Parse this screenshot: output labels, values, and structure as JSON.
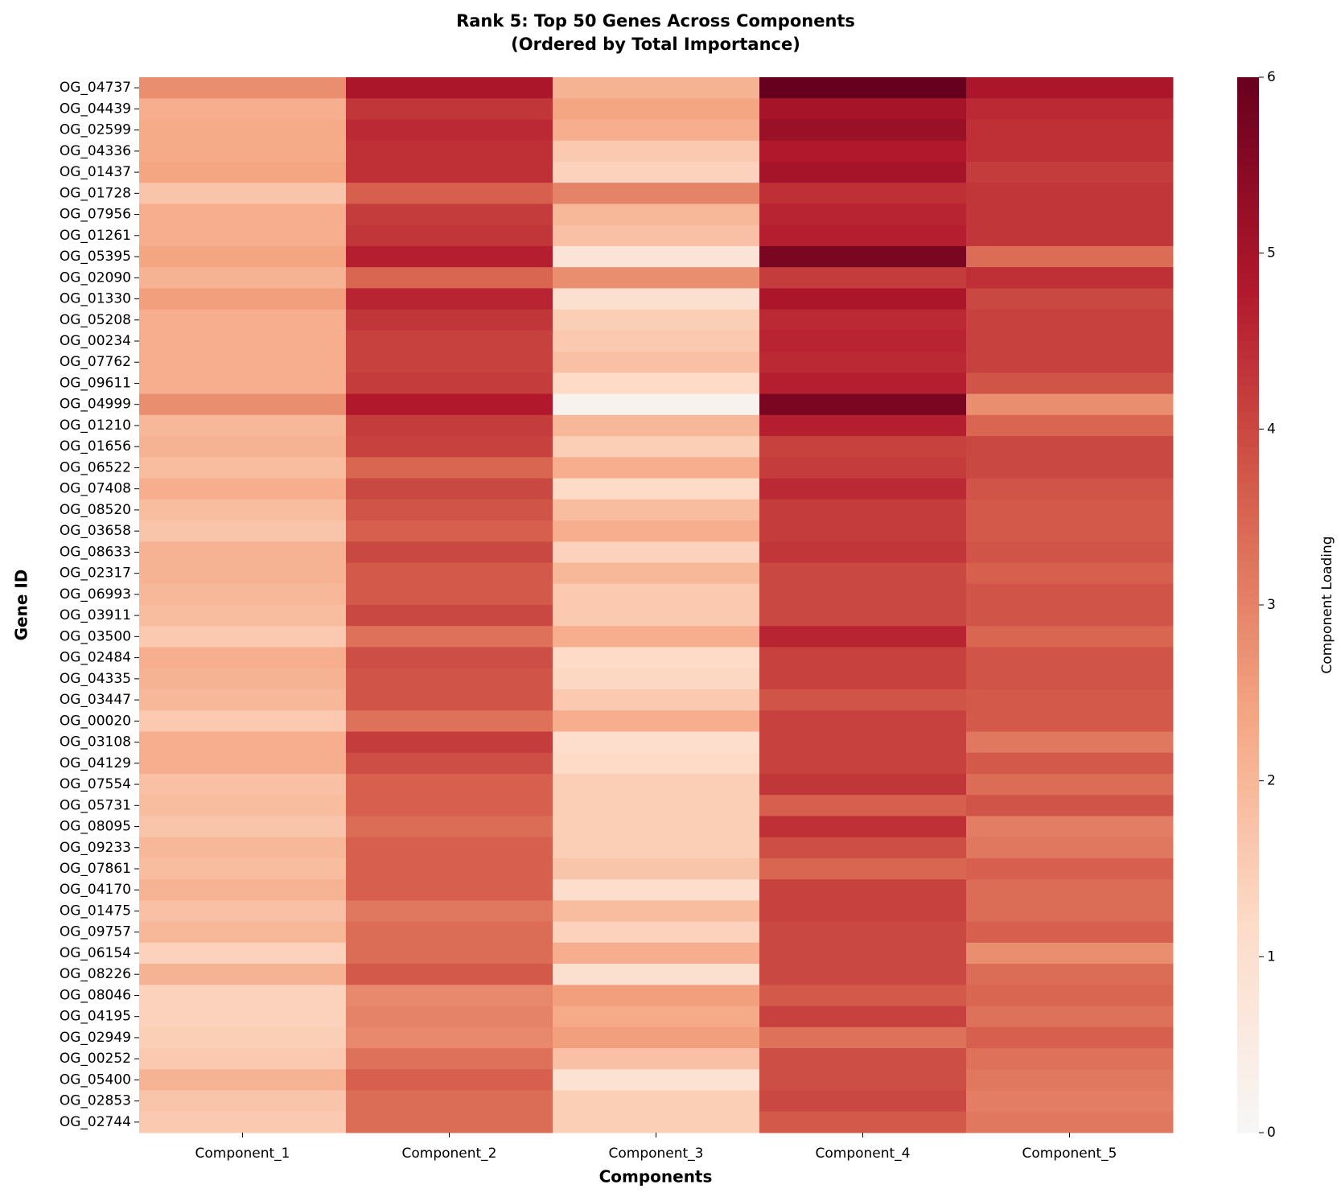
{
  "chart_data": {
    "type": "heatmap",
    "title": "Rank 5: Top 50 Genes Across Components",
    "subtitle": "(Ordered by Total Importance)",
    "x_label": "Components",
    "y_label": "Gene ID",
    "colorbar_label": "Component Loading",
    "x_categories": [
      "Component_1",
      "Component_2",
      "Component_3",
      "Component_4",
      "Component_5"
    ],
    "y_categories": [
      "OG_04737",
      "OG_04439",
      "OG_02599",
      "OG_04336",
      "OG_01437",
      "OG_01728",
      "OG_07956",
      "OG_01261",
      "OG_05395",
      "OG_02090",
      "OG_01330",
      "OG_05208",
      "OG_00234",
      "OG_07762",
      "OG_09611",
      "OG_04999",
      "OG_01210",
      "OG_01656",
      "OG_06522",
      "OG_07408",
      "OG_08520",
      "OG_03658",
      "OG_08633",
      "OG_02317",
      "OG_06993",
      "OG_03911",
      "OG_03500",
      "OG_02484",
      "OG_04335",
      "OG_03447",
      "OG_00020",
      "OG_03108",
      "OG_04129",
      "OG_07554",
      "OG_05731",
      "OG_08095",
      "OG_09233",
      "OG_07861",
      "OG_04170",
      "OG_01475",
      "OG_09757",
      "OG_06154",
      "OG_08226",
      "OG_08046",
      "OG_04195",
      "OG_02949",
      "OG_00252",
      "OG_05400",
      "OG_02853",
      "OG_02744"
    ],
    "values": [
      [
        2.8,
        4.9,
        2.1,
        6.0,
        4.9
      ],
      [
        2.2,
        4.3,
        2.4,
        5.0,
        4.5
      ],
      [
        2.3,
        4.5,
        2.2,
        5.2,
        4.4
      ],
      [
        2.3,
        4.4,
        1.6,
        4.8,
        4.4
      ],
      [
        2.4,
        4.4,
        1.4,
        5.0,
        4.2
      ],
      [
        1.7,
        3.6,
        3.0,
        4.4,
        4.3
      ],
      [
        2.2,
        4.2,
        2.0,
        4.6,
        4.3
      ],
      [
        2.2,
        4.3,
        1.8,
        4.7,
        4.3
      ],
      [
        2.4,
        4.7,
        0.8,
        5.7,
        3.4
      ],
      [
        2.1,
        3.5,
        2.8,
        4.2,
        4.4
      ],
      [
        2.5,
        4.6,
        1.0,
        4.9,
        4.0
      ],
      [
        2.2,
        4.3,
        1.5,
        4.5,
        4.1
      ],
      [
        2.2,
        4.1,
        1.6,
        4.6,
        4.1
      ],
      [
        2.2,
        4.1,
        1.8,
        4.5,
        4.1
      ],
      [
        2.2,
        4.2,
        1.2,
        4.7,
        3.8
      ],
      [
        2.8,
        4.8,
        0.2,
        5.7,
        2.8
      ],
      [
        2.0,
        4.2,
        2.0,
        4.7,
        3.5
      ],
      [
        2.1,
        4.1,
        1.5,
        4.1,
        4.0
      ],
      [
        1.9,
        3.5,
        2.2,
        4.2,
        4.0
      ],
      [
        2.2,
        4.0,
        1.2,
        4.5,
        3.8
      ],
      [
        1.9,
        3.8,
        1.9,
        4.2,
        3.7
      ],
      [
        1.7,
        3.6,
        2.2,
        4.2,
        3.7
      ],
      [
        2.1,
        4.0,
        1.4,
        4.3,
        3.8
      ],
      [
        2.1,
        3.7,
        2.0,
        4.0,
        3.6
      ],
      [
        2.0,
        3.7,
        1.6,
        4.0,
        3.8
      ],
      [
        1.9,
        4.0,
        1.6,
        4.0,
        3.8
      ],
      [
        1.6,
        3.3,
        2.2,
        4.6,
        3.5
      ],
      [
        2.2,
        3.9,
        1.2,
        4.1,
        3.8
      ],
      [
        2.1,
        3.8,
        1.3,
        4.1,
        3.8
      ],
      [
        2.0,
        3.8,
        1.6,
        3.8,
        3.7
      ],
      [
        1.6,
        3.3,
        2.2,
        4.1,
        3.7
      ],
      [
        2.2,
        4.2,
        1.1,
        4.1,
        3.2
      ],
      [
        2.2,
        3.9,
        1.2,
        4.1,
        3.7
      ],
      [
        1.8,
        3.6,
        1.5,
        4.3,
        3.4
      ],
      [
        1.9,
        3.6,
        1.5,
        3.6,
        3.8
      ],
      [
        1.7,
        3.4,
        1.5,
        4.4,
        3.1
      ],
      [
        2.0,
        3.6,
        1.5,
        3.9,
        3.2
      ],
      [
        1.9,
        3.6,
        1.7,
        3.5,
        3.6
      ],
      [
        2.1,
        3.6,
        1.1,
        4.1,
        3.4
      ],
      [
        1.8,
        3.2,
        1.9,
        4.1,
        3.4
      ],
      [
        2.0,
        3.4,
        1.4,
        4.0,
        3.6
      ],
      [
        1.4,
        3.4,
        2.2,
        4.0,
        2.8
      ],
      [
        2.1,
        3.7,
        1.0,
        4.0,
        3.4
      ],
      [
        1.4,
        2.9,
        2.5,
        3.7,
        3.5
      ],
      [
        1.4,
        3.0,
        2.3,
        4.1,
        3.3
      ],
      [
        1.5,
        2.9,
        2.5,
        3.3,
        3.6
      ],
      [
        1.6,
        3.3,
        1.8,
        3.9,
        3.3
      ],
      [
        2.1,
        3.6,
        0.9,
        3.9,
        3.2
      ],
      [
        1.7,
        3.4,
        1.5,
        4.0,
        3.1
      ],
      [
        1.6,
        3.4,
        1.5,
        3.7,
        3.2
      ]
    ],
    "clim": [
      0,
      6
    ],
    "cticks": [
      0,
      1,
      2,
      3,
      4,
      5,
      6
    ],
    "colorscale": [
      "#f7f7f7",
      "#fddbc7",
      "#f4a582",
      "#d6604d",
      "#b2182b",
      "#67001f"
    ]
  }
}
